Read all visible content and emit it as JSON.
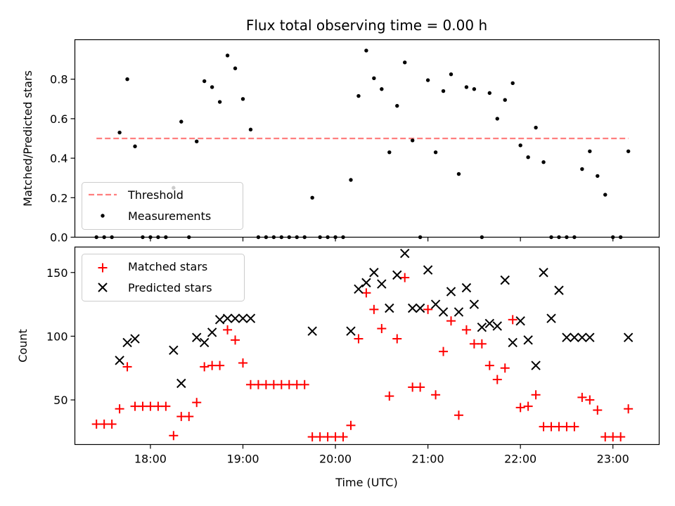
{
  "chart_data": [
    {
      "type": "scatter",
      "title": "Flux total observing time = 0.00 h",
      "ylabel": "Matched/Predicted stars",
      "ylim": [
        0,
        1.0
      ],
      "yticks": [
        0.0,
        0.2,
        0.4,
        0.6,
        0.8
      ],
      "ytick_labels": [
        "0.0",
        "0.2",
        "0.4",
        "0.6",
        "0.8"
      ],
      "xlim": [
        "17:11",
        "23:30"
      ],
      "legend": {
        "location": "lower-left",
        "entries": [
          "Threshold",
          "Measurements"
        ]
      },
      "threshold": {
        "name": "Threshold",
        "value": 0.5,
        "color": "#ff7f7f",
        "x_start": "17:25",
        "x_end": "23:10"
      },
      "series": [
        {
          "name": "Measurements",
          "color": "#000000",
          "x": [
            "17:25",
            "17:30",
            "17:35",
            "17:40",
            "17:45",
            "17:50",
            "17:55",
            "18:00",
            "18:05",
            "18:10",
            "18:15",
            "18:20",
            "18:25",
            "18:30",
            "18:35",
            "18:40",
            "18:45",
            "18:50",
            "18:55",
            "19:00",
            "19:05",
            "19:10",
            "19:15",
            "19:20",
            "19:25",
            "19:30",
            "19:35",
            "19:40",
            "19:45",
            "19:50",
            "19:55",
            "20:00",
            "20:05",
            "20:10",
            "20:15",
            "20:20",
            "20:25",
            "20:30",
            "20:35",
            "20:40",
            "20:45",
            "20:50",
            "20:55",
            "21:00",
            "21:05",
            "21:10",
            "21:15",
            "21:20",
            "21:25",
            "21:30",
            "21:35",
            "21:40",
            "21:45",
            "21:50",
            "21:55",
            "22:00",
            "22:05",
            "22:10",
            "22:15",
            "22:20",
            "22:25",
            "22:30",
            "22:35",
            "22:40",
            "22:45",
            "22:50",
            "22:55",
            "23:00",
            "23:05",
            "23:10"
          ],
          "y": [
            0,
            0,
            0,
            0.53,
            0.8,
            0.46,
            0,
            0,
            0,
            0,
            0.25,
            0.585,
            0,
            0.485,
            0.79,
            0.76,
            0.685,
            0.92,
            0.855,
            0.7,
            0.545,
            0,
            0,
            0,
            0,
            0,
            0,
            0,
            0.2,
            0,
            0,
            0,
            0,
            0.29,
            0.715,
            0.945,
            0.805,
            0.75,
            0.43,
            0.665,
            0.885,
            0.49,
            0,
            0.795,
            0.43,
            0.74,
            0.825,
            0.32,
            0.76,
            0.75,
            0,
            0.73,
            0.6,
            0.695,
            0.78,
            0.465,
            0.405,
            0.555,
            0.38,
            0,
            0,
            0,
            0,
            0.345,
            0.435,
            0.31,
            0.215,
            0,
            0,
            0.435
          ]
        }
      ]
    },
    {
      "type": "scatter",
      "xlabel": "Time (UTC)",
      "ylabel": "Count",
      "ylim": [
        15,
        170
      ],
      "yticks": [
        50,
        100,
        150
      ],
      "ytick_labels": [
        "50",
        "100",
        "150"
      ],
      "xlim": [
        "17:11",
        "23:30"
      ],
      "xticks": [
        "18:00",
        "19:00",
        "20:00",
        "21:00",
        "22:00",
        "23:00"
      ],
      "legend": {
        "location": "upper-left",
        "entries": [
          "Matched stars",
          "Predicted stars"
        ]
      },
      "series": [
        {
          "name": "Matched stars",
          "marker": "plus",
          "color": "#ff0000",
          "x": [
            "17:25",
            "17:30",
            "17:35",
            "17:40",
            "17:45",
            "17:50",
            "17:55",
            "18:00",
            "18:05",
            "18:10",
            "18:15",
            "18:20",
            "18:25",
            "18:30",
            "18:35",
            "18:40",
            "18:45",
            "18:50",
            "18:55",
            "19:00",
            "19:05",
            "19:10",
            "19:15",
            "19:20",
            "19:25",
            "19:30",
            "19:35",
            "19:40",
            "19:45",
            "19:50",
            "19:55",
            "20:00",
            "20:05",
            "20:10",
            "20:15",
            "20:20",
            "20:25",
            "20:30",
            "20:35",
            "20:40",
            "20:45",
            "20:50",
            "20:55",
            "21:00",
            "21:05",
            "21:10",
            "21:15",
            "21:20",
            "21:25",
            "21:30",
            "21:35",
            "21:40",
            "21:45",
            "21:50",
            "21:55",
            "22:00",
            "22:05",
            "22:10",
            "22:15",
            "22:20",
            "22:25",
            "22:30",
            "22:35",
            "22:40",
            "22:45",
            "22:50",
            "22:55",
            "23:00",
            "23:05",
            "23:10"
          ],
          "y": [
            31,
            31,
            31,
            43,
            76,
            45,
            45,
            45,
            45,
            45,
            22,
            37,
            37,
            48,
            76,
            77,
            77,
            105,
            97,
            79,
            62,
            62,
            62,
            62,
            62,
            62,
            62,
            62,
            21,
            21,
            21,
            21,
            21,
            30,
            98,
            134,
            121,
            106,
            53,
            98,
            146,
            60,
            60,
            121,
            54,
            88,
            112,
            38,
            105,
            94,
            94,
            77,
            66,
            75,
            113,
            44,
            45,
            54,
            29,
            29,
            29,
            29,
            29,
            52,
            50,
            42,
            21,
            21,
            21,
            43
          ]
        },
        {
          "name": "Predicted stars",
          "marker": "x",
          "color": "#000000",
          "x": [
            "17:40",
            "17:45",
            "17:50",
            "18:15",
            "18:20",
            "18:30",
            "18:35",
            "18:40",
            "18:45",
            "18:50",
            "18:55",
            "19:00",
            "19:05",
            "19:45",
            "20:10",
            "20:15",
            "20:20",
            "20:25",
            "20:30",
            "20:35",
            "20:40",
            "20:45",
            "20:50",
            "20:55",
            "21:00",
            "21:05",
            "21:10",
            "21:15",
            "21:20",
            "21:25",
            "21:30",
            "21:35",
            "21:40",
            "21:45",
            "21:50",
            "21:55",
            "22:00",
            "22:05",
            "22:10",
            "22:15",
            "22:20",
            "22:25",
            "22:30",
            "22:35",
            "22:40",
            "22:45",
            "23:10"
          ],
          "y": [
            81,
            95,
            98,
            89,
            63,
            99,
            95,
            103,
            113,
            114,
            114,
            114,
            114,
            104,
            104,
            137,
            142,
            150,
            141,
            122,
            148,
            165,
            122,
            122,
            152,
            125,
            119,
            135,
            119,
            138,
            125,
            107,
            110,
            108,
            144,
            95,
            112,
            97,
            77,
            150,
            114,
            136,
            99,
            99,
            99,
            99,
            99
          ]
        }
      ]
    }
  ]
}
